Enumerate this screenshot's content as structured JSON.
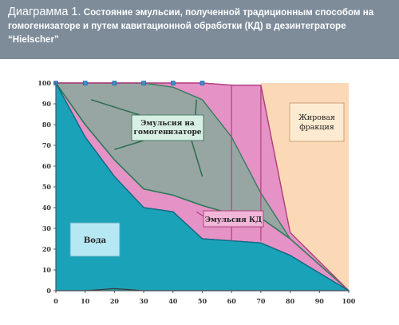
{
  "header": {
    "title_lead": "Диаграмма 1.",
    "title_rest": " Состояние эмульсии, полученной традиционным способом на гомогенизаторе и путем кавитационной обработки (КД) в дезинтеграторе “Hielscher”"
  },
  "chart_data": {
    "type": "area",
    "title": "Диаграмма 1. Состояние эмульсии, полученной традиционным способом на гомогенизаторе и путем кавитационной обработки (КД) в дезинтеграторе “Hielscher”",
    "xlabel": "",
    "ylabel": "",
    "xlim": [
      0,
      100
    ],
    "ylim": [
      0,
      100
    ],
    "x_ticks": [
      "0",
      "10",
      "20",
      "30",
      "40",
      "50",
      "60",
      "70",
      "80",
      "90",
      "100"
    ],
    "y_ticks": [
      "0",
      "10",
      "20",
      "30",
      "40",
      "50",
      "60",
      "70",
      "80",
      "90",
      "100"
    ],
    "grid": false,
    "series": [
      {
        "name": "Вода",
        "color": "#1aa3b8",
        "x": [
          0,
          10,
          20,
          30,
          40,
          50,
          60,
          70,
          80,
          100
        ],
        "values": [
          100,
          74,
          55,
          40,
          38,
          25,
          24,
          23,
          17,
          0
        ]
      },
      {
        "name": "Эмульсия КД",
        "color": "#e592c6",
        "x": [
          0,
          10,
          20,
          30,
          40,
          50,
          60,
          70,
          80,
          100
        ],
        "values": [
          100,
          100,
          100,
          100,
          100,
          100,
          99,
          99,
          28,
          0
        ]
      },
      {
        "name": "Эмульсия на гомогенизаторе",
        "color": "#8aa89c",
        "x": [
          0,
          10,
          20,
          30,
          40,
          50,
          60,
          70,
          80,
          100
        ],
        "values": [
          100,
          100,
          100,
          100,
          98,
          92,
          74,
          47,
          25,
          0
        ]
      },
      {
        "name": "",
        "color": "#2b7a55",
        "x": [
          0,
          10,
          20,
          30,
          40,
          50,
          60,
          70,
          80,
          100
        ],
        "values": [
          100,
          80,
          63,
          49,
          46,
          41,
          37,
          35,
          25,
          0
        ]
      },
      {
        "name": "",
        "color": "#3a3a3a",
        "x": [
          0,
          10,
          20,
          30,
          40,
          50,
          60,
          70,
          80,
          100
        ],
        "values": [
          0,
          0,
          1,
          0,
          0,
          0,
          0,
          0,
          0,
          0
        ]
      }
    ],
    "regions": {
      "fat_label": "Жировая фракция",
      "fat_color": "#fcd9b6"
    },
    "markers": [
      {
        "x": 0,
        "y": 100
      },
      {
        "x": 10,
        "y": 100
      },
      {
        "x": 20,
        "y": 100
      },
      {
        "x": 30,
        "y": 100
      },
      {
        "x": 40,
        "y": 100
      },
      {
        "x": 50,
        "y": 100
      }
    ],
    "annotations": [
      {
        "text": "Эмульсия на гомогенизаторе",
        "lines": [
          "Эмульсия на",
          "гомогенизаторе"
        ],
        "fill": "#d7efe4",
        "anchor": [
          38,
          82
        ]
      },
      {
        "text": "Эмульсия КД",
        "fill": "#f1b6d8",
        "anchor": [
          55,
          36
        ]
      },
      {
        "text": "Вода",
        "fill": "#b6e8f4",
        "anchor": [
          10,
          15
        ]
      },
      {
        "text": "Жировая фракция",
        "lines": [
          "Жировая",
          "фракция"
        ],
        "fill": "#fdebd1",
        "anchor": [
          87,
          80
        ]
      }
    ]
  }
}
